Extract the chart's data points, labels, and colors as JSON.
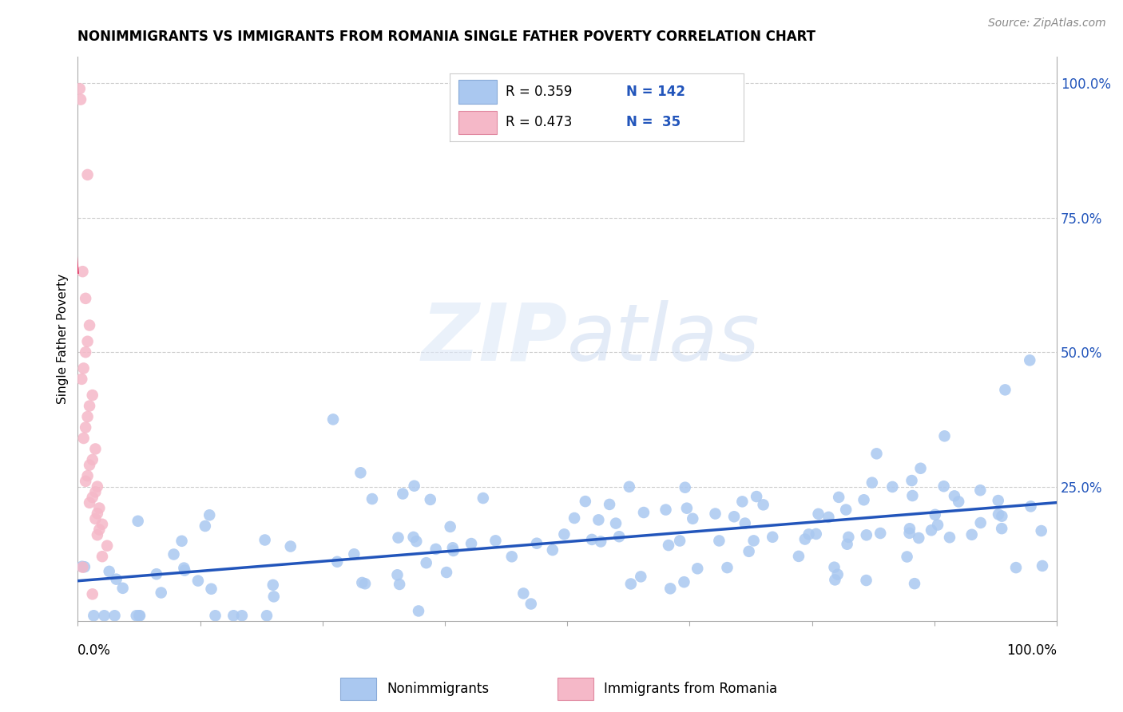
{
  "title": "NONIMMIGRANTS VS IMMIGRANTS FROM ROMANIA SINGLE FATHER POVERTY CORRELATION CHART",
  "source_text": "Source: ZipAtlas.com",
  "ylabel": "Single Father Poverty",
  "x_min": 0.0,
  "x_max": 1.0,
  "y_min": 0.0,
  "y_max": 1.0,
  "ytick_positions": [
    0.25,
    0.5,
    0.75,
    1.0
  ],
  "ytick_labels": [
    "25.0%",
    "50.0%",
    "75.0%",
    "100.0%"
  ],
  "blue_color": "#aac8f0",
  "blue_edge_color": "#aac8f0",
  "pink_color": "#f5b8c8",
  "pink_edge_color": "#f5b8c8",
  "blue_line_color": "#2255bb",
  "pink_line_color": "#e03060",
  "grid_color": "#cccccc",
  "legend_text_color": "#2255bb",
  "legend_R_blue": "0.359",
  "legend_N_blue": "142",
  "legend_R_pink": "0.473",
  "legend_N_pink": "35",
  "watermark_color": "#d0ddf0",
  "background_color": "#ffffff",
  "blue_intercept": 0.055,
  "blue_slope": 0.175,
  "pink_intercept": 0.04,
  "pink_slope": 9.0
}
